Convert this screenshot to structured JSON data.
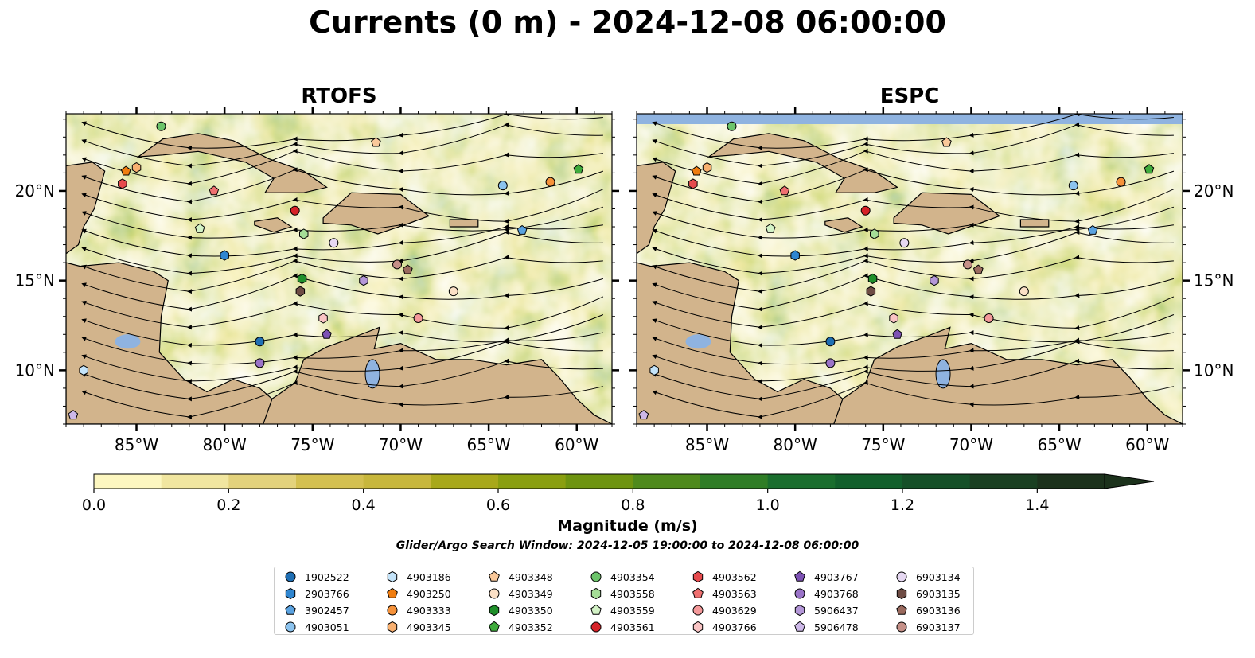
{
  "chart_data": [
    {
      "type": "heatmap",
      "title": "Currents (0 m) - 2024-12-08 06:00:00",
      "panel_title": "RTOFS",
      "x_ticks": [
        "85°W",
        "80°W",
        "75°W",
        "70°W",
        "65°W",
        "60°W"
      ],
      "x_tick_values": [
        -85,
        -80,
        -75,
        -70,
        -65,
        -60
      ],
      "y_ticks": [
        "20°N",
        "15°N",
        "10°N"
      ],
      "y_tick_values": [
        20,
        15,
        10
      ],
      "xlim": [
        -89,
        -58
      ],
      "ylim": [
        7,
        24.3
      ],
      "y_tick_side": "left"
    },
    {
      "type": "heatmap",
      "panel_title": "ESPC",
      "x_ticks": [
        "85°W",
        "80°W",
        "75°W",
        "70°W",
        "65°W",
        "60°W"
      ],
      "x_tick_values": [
        -85,
        -80,
        -75,
        -70,
        -65,
        -60
      ],
      "y_ticks": [
        "20°N",
        "15°N",
        "10°N"
      ],
      "y_tick_values": [
        20,
        15,
        10
      ],
      "xlim": [
        -89,
        -58
      ],
      "ylim": [
        7,
        24.3
      ],
      "y_tick_side": "right"
    }
  ],
  "colorbar": {
    "label": "Magnitude (m/s)",
    "ticks": [
      "0.0",
      "0.2",
      "0.4",
      "0.6",
      "0.8",
      "1.0",
      "1.2",
      "1.4"
    ],
    "tick_values": [
      0.0,
      0.2,
      0.4,
      0.6,
      0.8,
      1.0,
      1.2,
      1.4
    ],
    "range": [
      0.0,
      1.5
    ],
    "extend": "max",
    "colors": [
      "#fdf7c0",
      "#f1e6a0",
      "#e3d27c",
      "#d4c050",
      "#c8b73c",
      "#a8a81a",
      "#8a9f10",
      "#6e9410",
      "#4f8a1c",
      "#2f7d26",
      "#1a6e2e",
      "#12602c",
      "#155028",
      "#1a4022",
      "#1c321c"
    ]
  },
  "search_window": "Glider/Argo Search Window: 2024-12-05 19:00:00 to 2024-12-08 06:00:00",
  "colors": {
    "land": "#d2b48c",
    "ocean_fill": "#a0c4e8",
    "lake": "#8fb3e0"
  },
  "legend": [
    {
      "id": "1902522",
      "marker": "circle",
      "color": "#1f6fb4"
    },
    {
      "id": "2903766",
      "marker": "hexagon",
      "color": "#2f86d0"
    },
    {
      "id": "3902457",
      "marker": "pentagon",
      "color": "#5aa2e0"
    },
    {
      "id": "4903051",
      "marker": "circle",
      "color": "#8cc3ee"
    },
    {
      "id": "4903186",
      "marker": "hexagon",
      "color": "#c4e4fa"
    },
    {
      "id": "4903250",
      "marker": "pentagon",
      "color": "#f07d10"
    },
    {
      "id": "4903333",
      "marker": "circle",
      "color": "#f6923a"
    },
    {
      "id": "4903345",
      "marker": "hexagon",
      "color": "#f8b070"
    },
    {
      "id": "4903348",
      "marker": "pentagon",
      "color": "#f9c89a"
    },
    {
      "id": "4903349",
      "marker": "circle",
      "color": "#fbe0c6"
    },
    {
      "id": "4903350",
      "marker": "hexagon",
      "color": "#1f8f2a"
    },
    {
      "id": "4903352",
      "marker": "pentagon",
      "color": "#3fab3c"
    },
    {
      "id": "4903354",
      "marker": "circle",
      "color": "#6cc46a"
    },
    {
      "id": "4903558",
      "marker": "hexagon",
      "color": "#a5dd97"
    },
    {
      "id": "4903559",
      "marker": "pentagon",
      "color": "#d3f2c6"
    },
    {
      "id": "4903561",
      "marker": "circle",
      "color": "#d62228"
    },
    {
      "id": "4903562",
      "marker": "hexagon",
      "color": "#e64a4d"
    },
    {
      "id": "4903563",
      "marker": "pentagon",
      "color": "#ef7070"
    },
    {
      "id": "4903629",
      "marker": "circle",
      "color": "#f4999a"
    },
    {
      "id": "4903766",
      "marker": "hexagon",
      "color": "#f9c4c4"
    },
    {
      "id": "4903767",
      "marker": "pentagon",
      "color": "#7d52b4"
    },
    {
      "id": "4903768",
      "marker": "circle",
      "color": "#9a73c8"
    },
    {
      "id": "5906437",
      "marker": "hexagon",
      "color": "#b497d8"
    },
    {
      "id": "5906478",
      "marker": "pentagon",
      "color": "#cdb8e8"
    },
    {
      "id": "6903134",
      "marker": "circle",
      "color": "#e6d8f2"
    },
    {
      "id": "6903135",
      "marker": "hexagon",
      "color": "#6e4c44"
    },
    {
      "id": "6903136",
      "marker": "pentagon",
      "color": "#9a6a5e"
    },
    {
      "id": "6903137",
      "marker": "circle",
      "color": "#c59088"
    }
  ],
  "floats": [
    {
      "id": "1902522",
      "lon": -78.0,
      "lat": 11.6
    },
    {
      "id": "2903766",
      "lon": -80.0,
      "lat": 16.4
    },
    {
      "id": "3902457",
      "lon": -63.1,
      "lat": 17.8
    },
    {
      "id": "4903051",
      "lon": -64.2,
      "lat": 20.3
    },
    {
      "id": "4903186",
      "lon": -88.0,
      "lat": 10.0
    },
    {
      "id": "4903250",
      "lon": -85.6,
      "lat": 21.1
    },
    {
      "id": "4903333",
      "lon": -61.5,
      "lat": 20.5
    },
    {
      "id": "4903345",
      "lon": -85.0,
      "lat": 21.3
    },
    {
      "id": "4903348",
      "lon": -71.4,
      "lat": 22.7
    },
    {
      "id": "4903349",
      "lon": -67.0,
      "lat": 14.4
    },
    {
      "id": "4903350",
      "lon": -75.6,
      "lat": 15.1
    },
    {
      "id": "4903352",
      "lon": -59.9,
      "lat": 21.2
    },
    {
      "id": "4903354",
      "lon": -83.6,
      "lat": 23.6
    },
    {
      "id": "4903558",
      "lon": -75.5,
      "lat": 17.6
    },
    {
      "id": "4903559",
      "lon": -81.4,
      "lat": 17.9
    },
    {
      "id": "4903561",
      "lon": -76.0,
      "lat": 18.9
    },
    {
      "id": "4903562",
      "lon": -85.8,
      "lat": 20.4
    },
    {
      "id": "4903563",
      "lon": -80.6,
      "lat": 20.0
    },
    {
      "id": "4903629",
      "lon": -69.0,
      "lat": 12.9
    },
    {
      "id": "4903766",
      "lon": -74.4,
      "lat": 12.9
    },
    {
      "id": "4903767",
      "lon": -74.2,
      "lat": 12.0
    },
    {
      "id": "4903768",
      "lon": -78.0,
      "lat": 10.4
    },
    {
      "id": "5906437",
      "lon": -72.1,
      "lat": 15.0
    },
    {
      "id": "5906478",
      "lon": -88.6,
      "lat": 7.5
    },
    {
      "id": "6903134",
      "lon": -73.8,
      "lat": 17.1
    },
    {
      "id": "6903135",
      "lon": -75.7,
      "lat": 14.4
    },
    {
      "id": "6903136",
      "lon": -69.6,
      "lat": 15.6
    },
    {
      "id": "6903137",
      "lon": -70.2,
      "lat": 15.9
    }
  ]
}
